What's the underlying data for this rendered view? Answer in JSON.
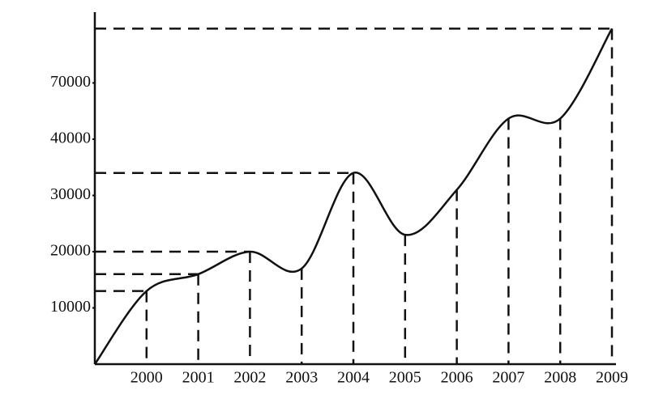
{
  "chart_data": {
    "type": "line",
    "x": [
      1999,
      2000,
      2001,
      2002,
      2003,
      2004,
      2005,
      2006,
      2007,
      2008,
      2009
    ],
    "values": [
      0,
      13000,
      16000,
      20000,
      17000,
      34000,
      23000,
      31000,
      51000,
      51000,
      99000
    ],
    "color": "#111111",
    "xlim": [
      1999,
      2009
    ],
    "xticks": [
      2000,
      2001,
      2002,
      2003,
      2004,
      2005,
      2006,
      2007,
      2008,
      2009
    ],
    "ylim": [
      0,
      100000
    ],
    "yticks": [
      10000,
      20000,
      30000,
      40000,
      70000
    ],
    "y_scale": "tick-spaced",
    "y_guides_at": [
      2000,
      2001,
      2002,
      2004,
      2009
    ]
  }
}
